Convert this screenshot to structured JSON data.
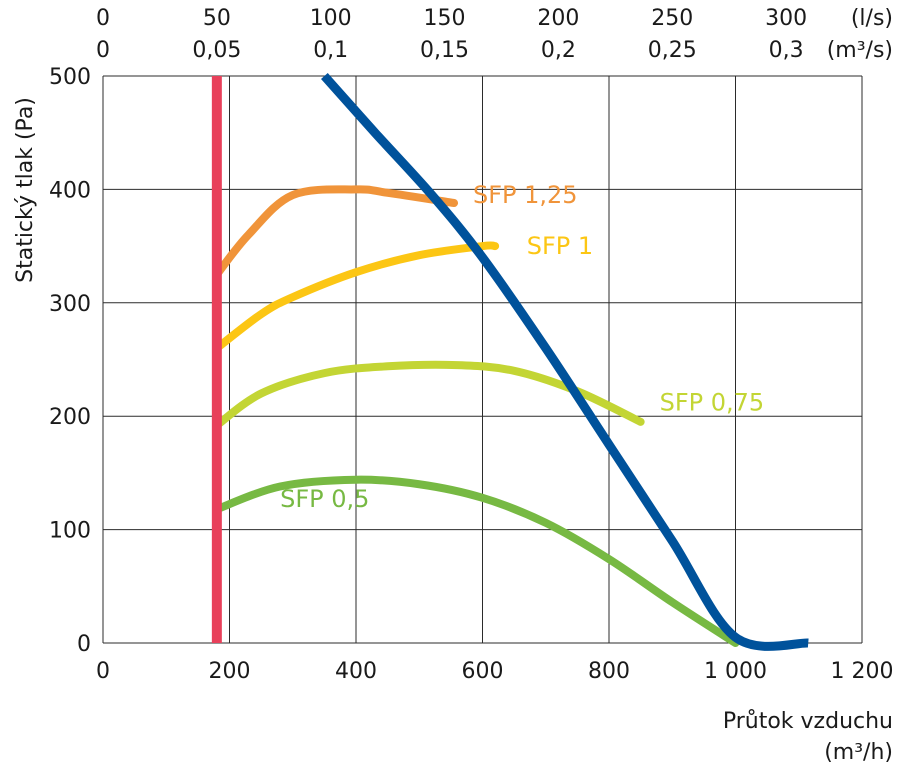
{
  "chart_data": {
    "type": "line",
    "ylabel": "Statický tlak (Pa)",
    "xlabel": "Průtok vzduchu",
    "xunit": "(m³/h)",
    "x_ticks": [
      "0",
      "200",
      "400",
      "600",
      "800",
      "1 000",
      "1 200"
    ],
    "y_ticks": [
      "0",
      "100",
      "200",
      "300",
      "400",
      "500"
    ],
    "top_ticks_ls": [
      "0",
      "50",
      "100",
      "150",
      "200",
      "250",
      "300"
    ],
    "top_ticks_m3s": [
      "0",
      "0,05",
      "0,1",
      "0,15",
      "0,2",
      "0,25",
      "0,3"
    ],
    "top_unit_ls": "(l/s)",
    "top_unit_m3s": "(m³/s)",
    "xlim": [
      0,
      1200
    ],
    "ylim": [
      0,
      500
    ],
    "grid": true,
    "min_flow_line": {
      "x": 180,
      "color": "#e8405a"
    },
    "fan_curve": {
      "color": "#00529b",
      "points": [
        [
          350,
          500
        ],
        [
          430,
          450
        ],
        [
          520,
          395
        ],
        [
          600,
          340
        ],
        [
          700,
          260
        ],
        [
          800,
          175
        ],
        [
          900,
          90
        ],
        [
          1000,
          5
        ],
        [
          1115,
          0
        ]
      ]
    },
    "series": [
      {
        "name": "SFP 1,25",
        "color": "#f0943a",
        "points": [
          [
            180,
            325
          ],
          [
            230,
            360
          ],
          [
            300,
            395
          ],
          [
            400,
            400
          ],
          [
            450,
            397
          ],
          [
            555,
            388
          ]
        ]
      },
      {
        "name": "SFP 1",
        "color": "#fcc614",
        "points": [
          [
            180,
            260
          ],
          [
            250,
            290
          ],
          [
            300,
            305
          ],
          [
            400,
            327
          ],
          [
            500,
            342
          ],
          [
            600,
            350
          ],
          [
            620,
            350
          ]
        ]
      },
      {
        "name": "SFP 0,75",
        "color": "#c3d534",
        "points": [
          [
            180,
            192
          ],
          [
            250,
            220
          ],
          [
            350,
            238
          ],
          [
            450,
            244
          ],
          [
            560,
            245
          ],
          [
            650,
            240
          ],
          [
            750,
            222
          ],
          [
            850,
            195
          ]
        ]
      },
      {
        "name": "SFP 0,5",
        "color": "#77b943",
        "points": [
          [
            180,
            118
          ],
          [
            280,
            138
          ],
          [
            400,
            144
          ],
          [
            500,
            140
          ],
          [
            600,
            128
          ],
          [
            700,
            106
          ],
          [
            800,
            74
          ],
          [
            900,
            36
          ],
          [
            1000,
            0
          ]
        ]
      }
    ],
    "labels": [
      {
        "text": "SFP 1,25",
        "x": 585,
        "y": 388,
        "color": "#f0943a"
      },
      {
        "text": "SFP 1",
        "x": 670,
        "y": 343,
        "color": "#fcc614"
      },
      {
        "text": "SFP 0,75",
        "x": 880,
        "y": 205,
        "color": "#c3d534"
      },
      {
        "text": "SFP 0,5",
        "x": 280,
        "y": 120,
        "color": "#77b943"
      }
    ]
  }
}
